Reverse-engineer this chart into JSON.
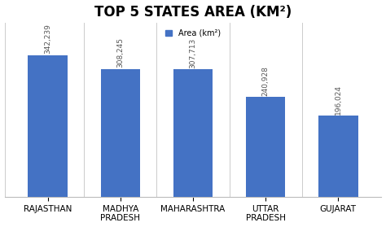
{
  "title": "TOP 5 STATES AREA (KM²)",
  "categories": [
    "RAJASTHAN",
    "MADHYA\nPRADESH",
    "MAHARASHTRA",
    "UTTAR\nPRADESH",
    "GUJARAT"
  ],
  "values": [
    342239,
    308245,
    307713,
    240928,
    196024
  ],
  "bar_color": "#4472C4",
  "bar_labels": [
    "342,239",
    "308,245",
    "307,713",
    "240,928",
    "196,024"
  ],
  "legend_label": "Area (km²)",
  "background_color": "#ffffff",
  "ylim": [
    0,
    420000
  ],
  "title_fontsize": 12,
  "label_fontsize": 6.5,
  "tick_fontsize": 7.5
}
